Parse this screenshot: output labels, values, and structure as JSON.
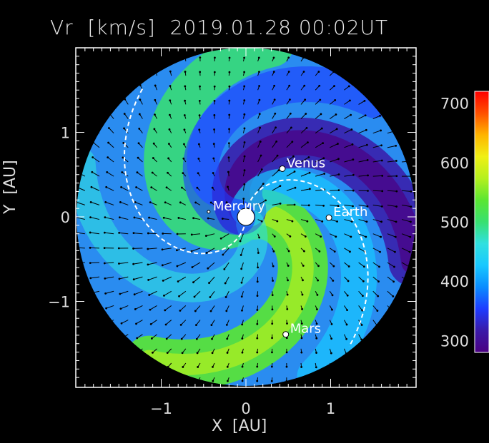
{
  "chart_data": {
    "type": "heatmap",
    "title": "Vr  [km/s]  2019.01.28 00:02UT",
    "xlabel": "X  [AU]",
    "ylabel": "Y  [AU]",
    "xlim": [
      -2.0,
      2.0
    ],
    "ylim": [
      -2.0,
      2.0
    ],
    "xticks": [
      -1,
      0,
      1
    ],
    "yticks": [
      -1,
      0,
      1
    ],
    "colorbar": {
      "ticks": [
        300,
        400,
        500,
        600,
        700
      ],
      "range": [
        280,
        720
      ],
      "colors": [
        "#4b0082",
        "#3a1aa8",
        "#1e3cff",
        "#0a8cff",
        "#18c8ff",
        "#30e0e0",
        "#38e070",
        "#5ae632",
        "#b4f01e",
        "#f0f014",
        "#ffb400",
        "#ff5000",
        "#ff0000"
      ]
    },
    "bodies": [
      {
        "name": "Sun",
        "x": 0.0,
        "y": 0.0
      },
      {
        "name": "Mercury",
        "x": -0.44,
        "y": 0.06
      },
      {
        "name": "Venus",
        "x": 0.43,
        "y": 0.57
      },
      {
        "name": "Earth",
        "x": 0.98,
        "y": -0.01
      },
      {
        "name": "Mars",
        "x": 0.47,
        "y": -1.39
      }
    ],
    "domain_radius_au": 2.0,
    "description_colors": {
      "slow_wind": "#5a2ad0",
      "fast_wind": "#7ee848"
    }
  }
}
